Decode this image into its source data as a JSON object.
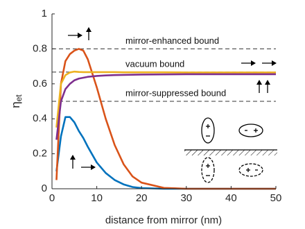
{
  "chart_data": {
    "type": "line",
    "xlabel": "distance from mirror (nm)",
    "ylabel": "η",
    "ylabel_subscript": "et",
    "xlim": [
      0,
      50
    ],
    "xticks": [
      0,
      10,
      20,
      30,
      40,
      50
    ],
    "ylim": [
      0,
      1
    ],
    "yticks": [
      0,
      0.2,
      0.4,
      0.6,
      0.8,
      1
    ],
    "reference_lines": [
      {
        "value": 0.8,
        "label": "mirror-enhanced bound"
      },
      {
        "value": 0.667,
        "label": "vacuum bound"
      },
      {
        "value": 0.5,
        "label": "mirror-suppressed bound"
      }
    ],
    "x": [
      1,
      2,
      3,
      4,
      5,
      6,
      7,
      8,
      10,
      12,
      14,
      16,
      18,
      20,
      25,
      30,
      40,
      50
    ],
    "series": [
      {
        "color": "#0072bd",
        "values": [
          0.1,
          0.3,
          0.41,
          0.41,
          0.38,
          0.33,
          0.29,
          0.24,
          0.15,
          0.09,
          0.05,
          0.025,
          0.01,
          0.004,
          0,
          0,
          0,
          0
        ]
      },
      {
        "color": "#d95319",
        "values": [
          0.05,
          0.6,
          0.73,
          0.77,
          0.79,
          0.8,
          0.79,
          0.74,
          0.58,
          0.4,
          0.25,
          0.14,
          0.07,
          0.035,
          0.005,
          0,
          0,
          0
        ]
      },
      {
        "color": "#edb120",
        "values": [
          0.35,
          0.6,
          0.65,
          0.665,
          0.67,
          0.668,
          0.667,
          0.667,
          0.667,
          0.667,
          0.667,
          0.666,
          0.666,
          0.666,
          0.666,
          0.665,
          0.665,
          0.665
        ]
      },
      {
        "color": "#7e2f8e",
        "values": [
          0.28,
          0.5,
          0.57,
          0.6,
          0.62,
          0.63,
          0.635,
          0.64,
          0.645,
          0.648,
          0.65,
          0.651,
          0.652,
          0.653,
          0.654,
          0.655,
          0.655,
          0.655
        ]
      }
    ]
  }
}
